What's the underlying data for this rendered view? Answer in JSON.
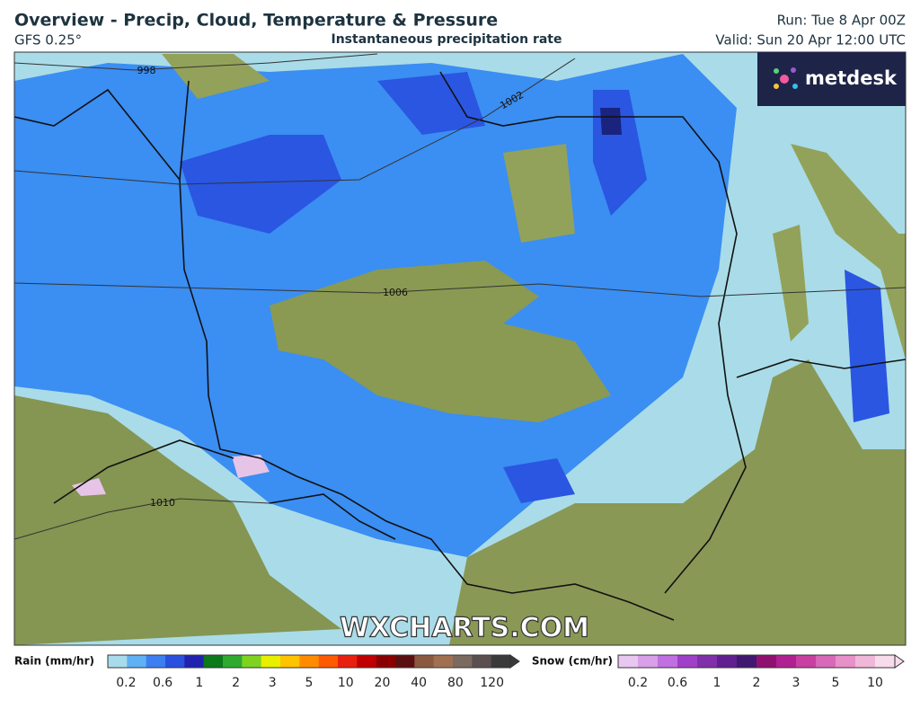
{
  "header": {
    "title": "Overview - Precip, Cloud, Temperature & Pressure",
    "model": "GFS 0.25°",
    "product": "Instantaneous precipitation rate",
    "run": "Run: Tue 8 Apr 00Z",
    "valid": "Valid: Sun 20 Apr 12:00 UTC"
  },
  "logo": "metdesk",
  "watermark": "WXCHARTS.COM",
  "isobars": [
    "998",
    "1002",
    "1006",
    "1010"
  ],
  "rain_legend": {
    "title": "Rain (mm/hr)",
    "labels": [
      "0.2",
      "0.6",
      "1",
      "2",
      "3",
      "5",
      "10",
      "20",
      "40",
      "80",
      "120"
    ],
    "colors": [
      "#a8dcec",
      "#5fb0f5",
      "#3d7ff0",
      "#2a50e0",
      "#2222b0",
      "#0a7a1a",
      "#2eaa2e",
      "#7ed321",
      "#e8f000",
      "#ffc400",
      "#ff8c00",
      "#ff5a00",
      "#e82010",
      "#c00000",
      "#8a0000",
      "#5a1010",
      "#8a5a40",
      "#a07050",
      "#7a6a60",
      "#5a5050",
      "#3a3a3a"
    ]
  },
  "snow_legend": {
    "title": "Snow (cm/hr)",
    "labels": [
      "0.2",
      "0.6",
      "1",
      "2",
      "3",
      "5",
      "10"
    ],
    "colors": [
      "#e8c8f0",
      "#d8a0e8",
      "#c070e0",
      "#a040c8",
      "#8030a8",
      "#602090",
      "#401870",
      "#901070",
      "#b02090",
      "#c840a0",
      "#d868b8",
      "#e890c8",
      "#f0b8d8",
      "#f8dcec"
    ]
  }
}
